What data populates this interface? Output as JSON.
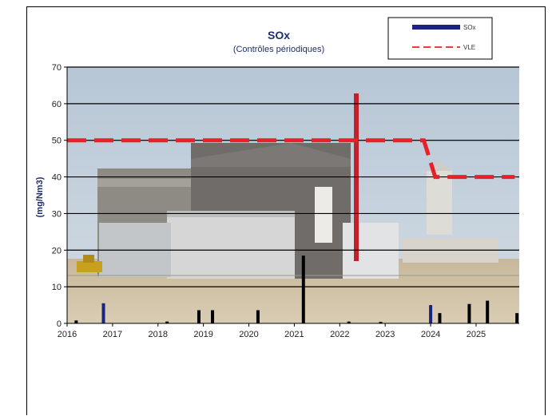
{
  "chart_data": {
    "type": "bar",
    "title": "SOx",
    "subtitle": "(Contrôles périodiques)",
    "ylabel": "(mg/Nm3)",
    "xlabel": "",
    "ylim": [
      0,
      70
    ],
    "xlim": [
      2016,
      2025.95
    ],
    "y_ticks": [
      0,
      10,
      20,
      30,
      40,
      50,
      60,
      70
    ],
    "x_ticks": [
      2016,
      2017,
      2018,
      2019,
      2020,
      2021,
      2022,
      2023,
      2024,
      2025
    ],
    "grid": true,
    "legend_position": "top-right",
    "background": "photo of an industrial plant",
    "series": [
      {
        "name": "SOx",
        "type": "bar",
        "color": "#1a237e",
        "points": [
          {
            "x": 2016.8,
            "y": 5.5
          },
          {
            "x": 2024.0,
            "y": 5.0
          }
        ]
      },
      {
        "name": "",
        "type": "bar",
        "color": "#000000",
        "points": [
          {
            "x": 2016.2,
            "y": 0.8
          },
          {
            "x": 2018.2,
            "y": 0.5
          },
          {
            "x": 2018.9,
            "y": 3.6
          },
          {
            "x": 2019.2,
            "y": 3.6
          },
          {
            "x": 2020.2,
            "y": 3.6
          },
          {
            "x": 2021.2,
            "y": 18.5
          },
          {
            "x": 2022.2,
            "y": 0.5
          },
          {
            "x": 2022.9,
            "y": 0.4
          },
          {
            "x": 2024.2,
            "y": 2.8
          },
          {
            "x": 2024.85,
            "y": 5.3
          },
          {
            "x": 2025.25,
            "y": 6.2
          },
          {
            "x": 2025.9,
            "y": 2.8
          }
        ]
      },
      {
        "name": "VLE",
        "type": "line",
        "color": "#e8202a",
        "style": "dashed",
        "points": [
          {
            "x": 2016.0,
            "y": 50
          },
          {
            "x": 2023.85,
            "y": 50
          },
          {
            "x": 2024.1,
            "y": 40
          },
          {
            "x": 2025.85,
            "y": 40
          }
        ]
      }
    ]
  }
}
